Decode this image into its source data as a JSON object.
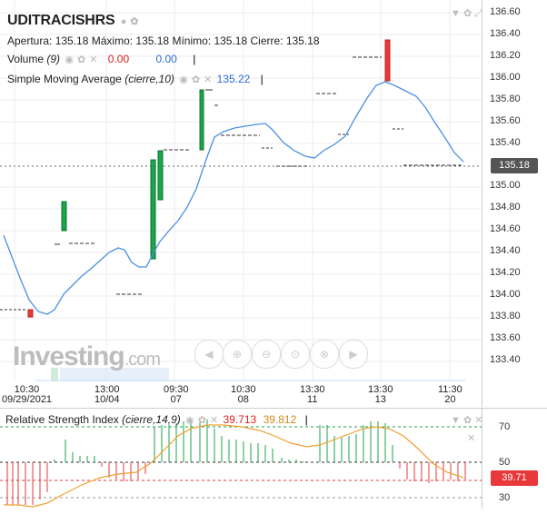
{
  "header": {
    "symbol": "UDITRACISHRS",
    "ohlc": "Apertura: 135.18  Máximo: 135.18  Mínimo: 135.18  Cierre: 135.18",
    "volume_label": "Volume",
    "volume_param": "(9)",
    "volume_value_a": "0.00",
    "volume_value_b": "0.00",
    "sma_label": "Simple Moving Average",
    "sma_param": "(cierre,10)",
    "sma_value": "135.22"
  },
  "price_axis": {
    "ticks": [
      "136.60",
      "136.40",
      "136.20",
      "136.00",
      "135.80",
      "135.60",
      "135.40",
      "135.20",
      "135.00",
      "134.80",
      "134.60",
      "134.40",
      "134.20",
      "134.00",
      "133.80",
      "133.60",
      "133.40"
    ],
    "last_price": "135.18"
  },
  "time_axis": [
    {
      "top": "10:30",
      "bottom": "09/29/2021"
    },
    {
      "top": "13:00",
      "bottom": "10/04"
    },
    {
      "top": "09:30",
      "bottom": "07"
    },
    {
      "top": "10:30",
      "bottom": "08"
    },
    {
      "top": "13:30",
      "bottom": "11"
    },
    {
      "top": "13:30",
      "bottom": "13"
    },
    {
      "top": "11:30",
      "bottom": "20"
    }
  ],
  "rsi": {
    "label": "Relative Strength Index",
    "param": "(cierre,14,9)",
    "value_a": "39.713",
    "value_b": "39.812",
    "ticks": [
      "70",
      "50",
      "30"
    ],
    "last": "39.71"
  },
  "watermark": {
    "brand": "Investing",
    "suffix": ".com"
  },
  "colors": {
    "up": "#1aa64a",
    "down": "#e8383a",
    "sma": "#4a90e2",
    "rsi_signal": "#f0a030"
  },
  "corner_icons": [
    "eye-icon",
    "settings-icon",
    "fullscreen-icon",
    "close-icon"
  ]
}
